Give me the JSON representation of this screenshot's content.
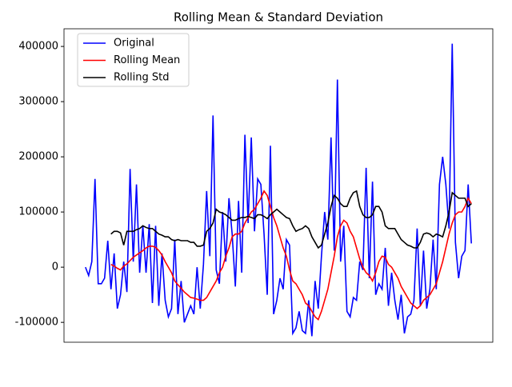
{
  "chart_data": {
    "type": "line",
    "title": "Rolling Mean & Standard Deviation",
    "categories": [
      null,
      null,
      null,
      null,
      null,
      null,
      null,
      null,
      null,
      null,
      null,
      null,
      null,
      null,
      null,
      null,
      null,
      null,
      null,
      null,
      null,
      null,
      null,
      null,
      null,
      null,
      null,
      null,
      null,
      null,
      null,
      null,
      null,
      null,
      null,
      null,
      null,
      null,
      null,
      null,
      null,
      null,
      null,
      null,
      null,
      null,
      null,
      null,
      null,
      null,
      null,
      null,
      null,
      null,
      null,
      null,
      null,
      null,
      null,
      null,
      null,
      null,
      null,
      null,
      null,
      null,
      null,
      null,
      null,
      null,
      null,
      null,
      null,
      null,
      null,
      null,
      null,
      null,
      null,
      null,
      null,
      null,
      null,
      null,
      null,
      null,
      null,
      null,
      null,
      null,
      null,
      null,
      null,
      null,
      null,
      null,
      null,
      null,
      null,
      null,
      null,
      null,
      null,
      null,
      null,
      null,
      null,
      null,
      null,
      null,
      null,
      null,
      null,
      null,
      null,
      null,
      null,
      null,
      null,
      null,
      null,
      null
    ],
    "series": [
      {
        "name": "Original",
        "color": "#0000ff",
        "values": [
          0,
          -15000,
          10000,
          160000,
          -30000,
          -30000,
          -20000,
          48000,
          -40000,
          25000,
          -75000,
          -50000,
          10000,
          -45000,
          178000,
          10000,
          150000,
          -10000,
          75000,
          -10000,
          78000,
          -65000,
          75000,
          -70000,
          25000,
          -60000,
          -90000,
          -75000,
          50000,
          -85000,
          -25000,
          -100000,
          -85000,
          -70000,
          -85000,
          0,
          -75000,
          5000,
          138000,
          20000,
          275000,
          -5000,
          -30000,
          100000,
          10000,
          125000,
          60000,
          -35000,
          120000,
          -10000,
          240000,
          80000,
          235000,
          65000,
          160000,
          150000,
          60000,
          -50000,
          220000,
          -85000,
          -60000,
          -20000,
          -40000,
          50000,
          40000,
          -120000,
          -110000,
          -80000,
          -115000,
          -120000,
          -60000,
          -125000,
          -25000,
          -75000,
          20000,
          100000,
          50000,
          235000,
          30000,
          340000,
          10000,
          75000,
          -80000,
          -90000,
          -55000,
          -60000,
          10000,
          -5000,
          180000,
          -20000,
          155000,
          -50000,
          -30000,
          -40000,
          35000,
          -70000,
          -10000,
          -60000,
          -95000,
          -50000,
          -120000,
          -90000,
          -85000,
          -60000,
          70000,
          -70000,
          30000,
          -75000,
          -40000,
          50000,
          -40000,
          150000,
          200000,
          150000,
          70000,
          405000,
          45000,
          -20000,
          20000,
          30000,
          150000,
          43000
        ]
      },
      {
        "name": "Rolling Mean",
        "color": "#ff0000",
        "values": [
          null,
          null,
          null,
          null,
          null,
          null,
          null,
          null,
          5000,
          2000,
          -2000,
          -5000,
          2000,
          6000,
          12000,
          18000,
          22000,
          26000,
          30000,
          35000,
          38000,
          38000,
          36000,
          30000,
          22000,
          10000,
          0,
          -10000,
          -25000,
          -32000,
          -38000,
          -45000,
          -50000,
          -55000,
          -56000,
          -58000,
          -60000,
          -60000,
          -55000,
          -45000,
          -35000,
          -25000,
          -10000,
          0,
          20000,
          35000,
          55000,
          60000,
          60000,
          65000,
          80000,
          90000,
          100000,
          105000,
          115000,
          125000,
          138000,
          130000,
          110000,
          90000,
          75000,
          55000,
          35000,
          20000,
          -5000,
          -25000,
          -30000,
          -40000,
          -50000,
          -65000,
          -70000,
          -80000,
          -90000,
          -95000,
          -80000,
          -60000,
          -40000,
          -10000,
          20000,
          55000,
          75000,
          85000,
          80000,
          65000,
          55000,
          35000,
          15000,
          0,
          -10000,
          -15000,
          -25000,
          -10000,
          10000,
          20000,
          18000,
          5000,
          0,
          -10000,
          -20000,
          -35000,
          -45000,
          -55000,
          -65000,
          -70000,
          -75000,
          -70000,
          -60000,
          -55000,
          -50000,
          -40000,
          -30000,
          -10000,
          10000,
          35000,
          60000,
          80000,
          95000,
          100000,
          100000,
          110000,
          125000,
          115000
        ]
      },
      {
        "name": "Rolling Std",
        "color": "#000000",
        "values": [
          null,
          null,
          null,
          null,
          null,
          null,
          null,
          null,
          60000,
          65000,
          65000,
          62000,
          40000,
          65000,
          65000,
          65000,
          68000,
          70000,
          75000,
          72000,
          70000,
          70000,
          65000,
          60000,
          58000,
          55000,
          55000,
          50000,
          48000,
          50000,
          48000,
          48000,
          48000,
          45000,
          45000,
          38000,
          38000,
          40000,
          65000,
          70000,
          80000,
          105000,
          100000,
          98000,
          95000,
          90000,
          85000,
          85000,
          88000,
          90000,
          90000,
          92000,
          90000,
          88000,
          95000,
          95000,
          92000,
          88000,
          95000,
          100000,
          105000,
          100000,
          95000,
          90000,
          88000,
          75000,
          65000,
          68000,
          70000,
          75000,
          70000,
          55000,
          45000,
          35000,
          40000,
          60000,
          80000,
          110000,
          130000,
          125000,
          115000,
          110000,
          110000,
          125000,
          135000,
          138000,
          110000,
          95000,
          90000,
          90000,
          95000,
          110000,
          110000,
          100000,
          75000,
          70000,
          70000,
          70000,
          60000,
          50000,
          45000,
          40000,
          38000,
          35000,
          35000,
          45000,
          60000,
          62000,
          60000,
          55000,
          60000,
          58000,
          55000,
          75000,
          100000,
          135000,
          130000,
          125000,
          125000,
          125000,
          110000,
          115000
        ]
      }
    ],
    "ylim": [
      -136000,
      432000
    ],
    "yticks": [
      -100000,
      0,
      100000,
      200000,
      300000,
      400000
    ],
    "legend": "upper left"
  }
}
